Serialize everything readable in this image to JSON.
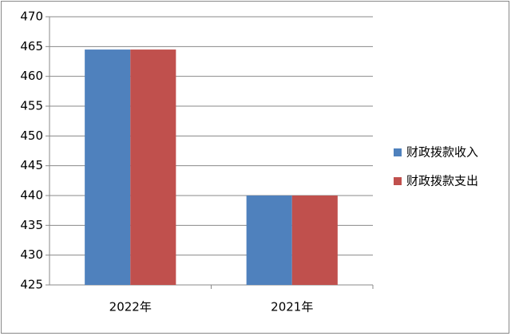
{
  "chart_data": {
    "type": "bar",
    "categories": [
      "2022年",
      "2021年"
    ],
    "series": [
      {
        "name": "财政拨款收入",
        "color": "#4f81bd",
        "values": [
          464.5,
          440
        ]
      },
      {
        "name": "财政拨款支出",
        "color": "#c0504d",
        "values": [
          464.5,
          440
        ]
      }
    ],
    "ylim": [
      425,
      470
    ],
    "yticks": [
      425,
      430,
      435,
      440,
      445,
      450,
      455,
      460,
      465,
      470
    ],
    "grid": true,
    "legend": "right"
  }
}
